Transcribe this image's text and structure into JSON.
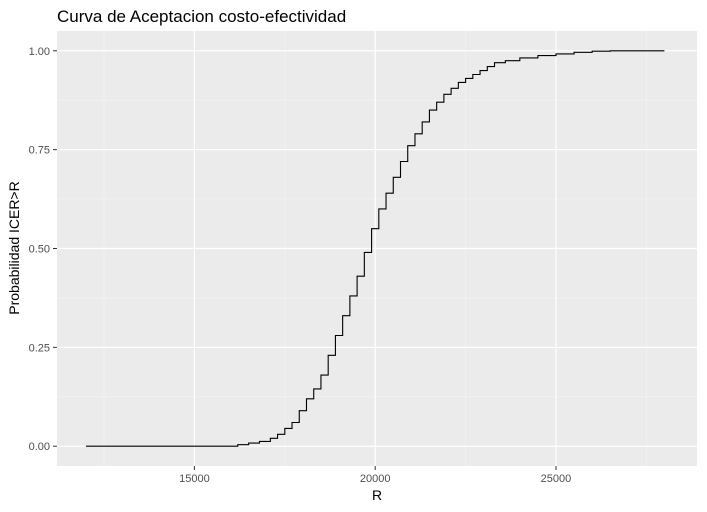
{
  "chart_data": {
    "type": "line",
    "title": "Curva de Aceptacion costo-efectividad",
    "xlabel": "R",
    "ylabel": "Probabilidad ICER>R",
    "xlim": [
      11200,
      28900
    ],
    "ylim": [
      -0.05,
      1.05
    ],
    "x_ticks": [
      15000,
      20000,
      25000
    ],
    "x_tick_labels": [
      "15000",
      "20000",
      "25000"
    ],
    "y_ticks": [
      0,
      0.25,
      0.5,
      0.75,
      1
    ],
    "y_tick_labels": [
      "0.00",
      "0.25",
      "0.50",
      "0.75",
      "1.00"
    ],
    "grid": true,
    "series": [
      {
        "color": "#000000",
        "points": [
          [
            12000,
            0.0
          ],
          [
            16100,
            0.0
          ],
          [
            16200,
            0.004
          ],
          [
            16500,
            0.008
          ],
          [
            16800,
            0.012
          ],
          [
            17100,
            0.02
          ],
          [
            17300,
            0.03
          ],
          [
            17500,
            0.045
          ],
          [
            17700,
            0.06
          ],
          [
            17900,
            0.09
          ],
          [
            18100,
            0.12
          ],
          [
            18300,
            0.145
          ],
          [
            18500,
            0.18
          ],
          [
            18700,
            0.23
          ],
          [
            18900,
            0.28
          ],
          [
            19100,
            0.33
          ],
          [
            19300,
            0.38
          ],
          [
            19500,
            0.43
          ],
          [
            19700,
            0.49
          ],
          [
            19900,
            0.55
          ],
          [
            20100,
            0.6
          ],
          [
            20300,
            0.64
          ],
          [
            20500,
            0.68
          ],
          [
            20700,
            0.72
          ],
          [
            20900,
            0.76
          ],
          [
            21100,
            0.79
          ],
          [
            21300,
            0.82
          ],
          [
            21500,
            0.85
          ],
          [
            21700,
            0.87
          ],
          [
            21900,
            0.89
          ],
          [
            22100,
            0.905
          ],
          [
            22300,
            0.92
          ],
          [
            22500,
            0.93
          ],
          [
            22700,
            0.94
          ],
          [
            22900,
            0.95
          ],
          [
            23100,
            0.96
          ],
          [
            23300,
            0.97
          ],
          [
            23600,
            0.975
          ],
          [
            24000,
            0.982
          ],
          [
            24500,
            0.988
          ],
          [
            25000,
            0.992
          ],
          [
            25500,
            0.996
          ],
          [
            26000,
            0.999
          ],
          [
            26500,
            1.0
          ],
          [
            28000,
            1.0
          ]
        ]
      }
    ]
  }
}
